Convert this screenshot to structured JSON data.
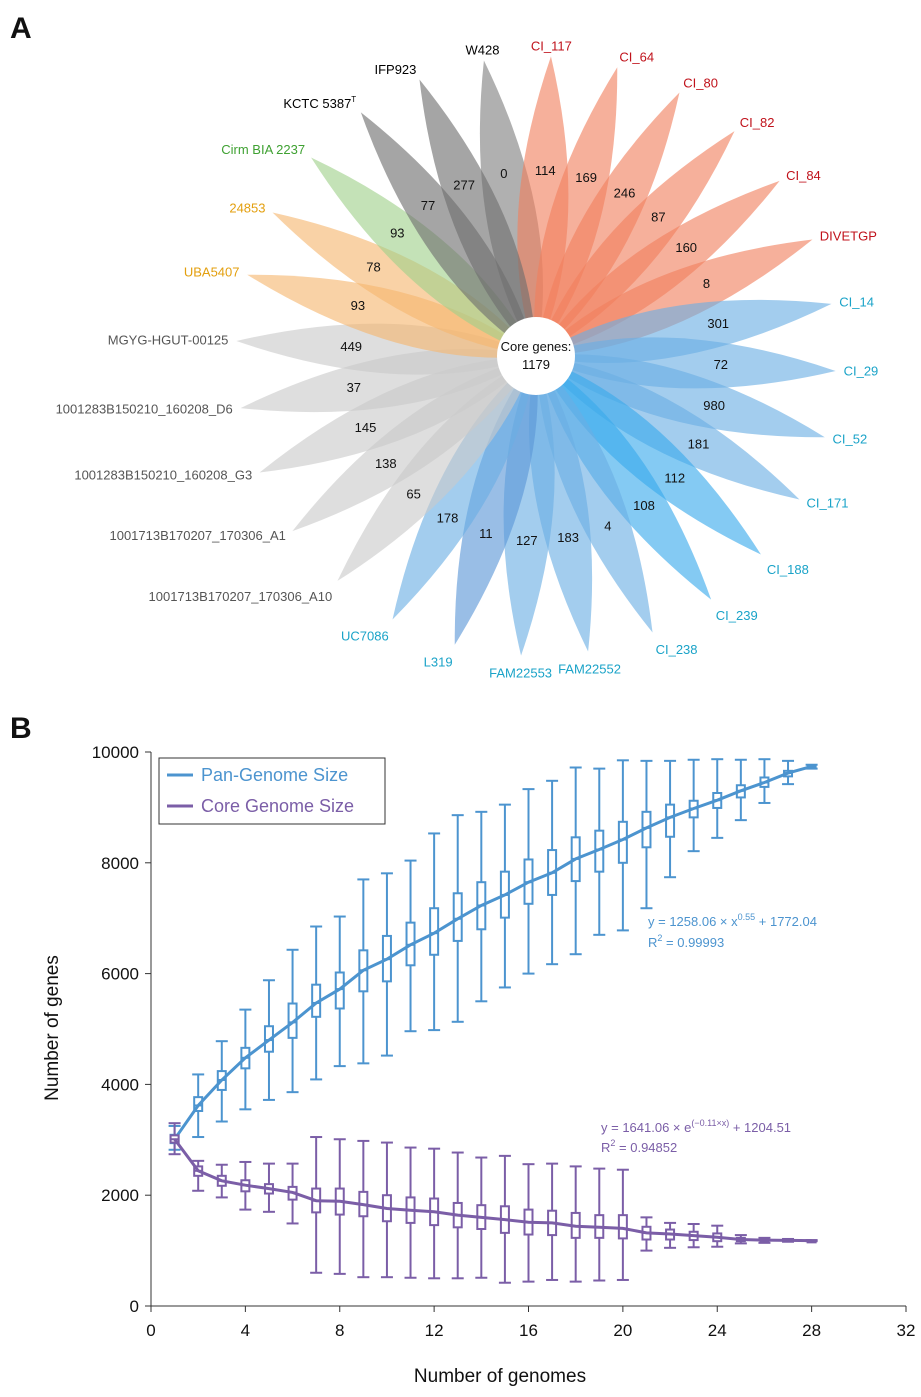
{
  "panel_labels": {
    "a": "A",
    "b": "B"
  },
  "chart_data": [
    {
      "type": "flower",
      "title": "",
      "core_label": "Core genes:",
      "core_value": "1179",
      "petals": [
        {
          "name": "W428",
          "value": "0",
          "color": "#7f7f7f",
          "label_color": "#000000"
        },
        {
          "name": "CI_117",
          "value": "114",
          "color": "#f07f5e",
          "label_color": "#c0121b"
        },
        {
          "name": "CI_64",
          "value": "169",
          "color": "#f07f5e",
          "label_color": "#c0121b"
        },
        {
          "name": "CI_80",
          "value": "246",
          "color": "#f07f5e",
          "label_color": "#c0121b"
        },
        {
          "name": "CI_82",
          "value": "87",
          "color": "#f07f5e",
          "label_color": "#c0121b"
        },
        {
          "name": "CI_84",
          "value": "160",
          "color": "#f07f5e",
          "label_color": "#c0121b"
        },
        {
          "name": "DIVETGP",
          "value": "8",
          "color": "#f07f5e",
          "label_color": "#c0121b"
        },
        {
          "name": "CI_14",
          "value": "301",
          "color": "#6aaee3",
          "label_color": "#1aa3c8"
        },
        {
          "name": "CI_29",
          "value": "72",
          "color": "#6aaee3",
          "label_color": "#1aa3c8"
        },
        {
          "name": "CI_52",
          "value": "980",
          "color": "#6aaee3",
          "label_color": "#1aa3c8"
        },
        {
          "name": "CI_171",
          "value": "181",
          "color": "#6aaee3",
          "label_color": "#1aa3c8"
        },
        {
          "name": "CI_188",
          "value": "112",
          "color": "#39a9ec",
          "label_color": "#1aa3c8"
        },
        {
          "name": "CI_239",
          "value": "108",
          "color": "#39a9ec",
          "label_color": "#1aa3c8"
        },
        {
          "name": "CI_238",
          "value": "4",
          "color": "#6aaee3",
          "label_color": "#1aa3c8"
        },
        {
          "name": "FAM22552",
          "value": "183",
          "color": "#6aaee3",
          "label_color": "#1aa3c8"
        },
        {
          "name": "FAM22553",
          "value": "127",
          "color": "#6aaee3",
          "label_color": "#1aa3c8"
        },
        {
          "name": "L319",
          "value": "11",
          "color": "#5a96d6",
          "label_color": "#1aa3c8"
        },
        {
          "name": "UC7086",
          "value": "178",
          "color": "#6aaee3",
          "label_color": "#1aa3c8"
        },
        {
          "name": "1001713B170207_170306_A10",
          "value": "65",
          "color": "#c9c9c9",
          "label_color": "#555555"
        },
        {
          "name": "1001713B170207_170306_A1",
          "value": "138",
          "color": "#c9c9c9",
          "label_color": "#555555"
        },
        {
          "name": "1001283B150210_160208_G3",
          "value": "145",
          "color": "#c9c9c9",
          "label_color": "#555555"
        },
        {
          "name": "1001283B150210_160208_D6",
          "value": "37",
          "color": "#c9c9c9",
          "label_color": "#555555"
        },
        {
          "name": "MGYG-HGUT-00125",
          "value": "449",
          "color": "#c9c9c9",
          "label_color": "#555555"
        },
        {
          "name": "UBA5407",
          "value": "93",
          "color": "#f5b770",
          "label_color": "#e39f0e"
        },
        {
          "name": "24853",
          "value": "78",
          "color": "#f5b770",
          "label_color": "#e39f0e"
        },
        {
          "name": "Cirm BIA 2237",
          "value": "93",
          "color": "#9fd08a",
          "label_color": "#3fa132"
        },
        {
          "name": "KCTC 5387",
          "name_sup": "T",
          "value": "77",
          "color": "#6e6e6e",
          "label_color": "#000000"
        },
        {
          "name": "IFP923",
          "value": "277",
          "color": "#6e6e6e",
          "label_color": "#000000"
        }
      ]
    },
    {
      "type": "box",
      "xlabel": "Number of genomes",
      "ylabel": "Number of genes",
      "xlim": [
        0,
        32
      ],
      "ylim": [
        0,
        10000
      ],
      "xticks": [
        "0",
        "4",
        "8",
        "12",
        "16",
        "20",
        "24",
        "28",
        "32"
      ],
      "yticks": [
        "0",
        "2000",
        "4000",
        "6000",
        "8000",
        "10000"
      ],
      "legend_position": "top-left",
      "series": [
        {
          "name": "Pan-Genome Size",
          "color": "#4c94cf",
          "fit_equation": "y = 1258.06 × x",
          "fit_exponent": "0.55",
          "fit_tail": " + 1772.04",
          "r2_label": "R",
          "r2_sup": "2",
          "r2_value": " = 0.99993",
          "boxes": [
            {
              "x": 1,
              "min": 2820,
              "q1": 2940,
              "median": 3010,
              "q3": 3090,
              "max": 3250
            },
            {
              "x": 2,
              "min": 3050,
              "q1": 3520,
              "median": 3620,
              "q3": 3770,
              "max": 4180
            },
            {
              "x": 3,
              "min": 3330,
              "q1": 3900,
              "median": 4080,
              "q3": 4240,
              "max": 4780
            },
            {
              "x": 4,
              "min": 3550,
              "q1": 4290,
              "median": 4480,
              "q3": 4660,
              "max": 5350
            },
            {
              "x": 5,
              "min": 3720,
              "q1": 4590,
              "median": 4800,
              "q3": 5050,
              "max": 5880
            },
            {
              "x": 6,
              "min": 3860,
              "q1": 4840,
              "median": 5120,
              "q3": 5460,
              "max": 6430
            },
            {
              "x": 7,
              "min": 4090,
              "q1": 5220,
              "median": 5470,
              "q3": 5800,
              "max": 6850
            },
            {
              "x": 8,
              "min": 4330,
              "q1": 5370,
              "median": 5720,
              "q3": 6020,
              "max": 7030
            },
            {
              "x": 9,
              "min": 4380,
              "q1": 5680,
              "median": 6060,
              "q3": 6420,
              "max": 7700
            },
            {
              "x": 10,
              "min": 4520,
              "q1": 5860,
              "median": 6260,
              "q3": 6680,
              "max": 7810
            },
            {
              "x": 11,
              "min": 4960,
              "q1": 6150,
              "median": 6520,
              "q3": 6920,
              "max": 8040
            },
            {
              "x": 12,
              "min": 4980,
              "q1": 6340,
              "median": 6730,
              "q3": 7180,
              "max": 8530
            },
            {
              "x": 13,
              "min": 5130,
              "q1": 6590,
              "median": 6990,
              "q3": 7450,
              "max": 8860
            },
            {
              "x": 14,
              "min": 5500,
              "q1": 6800,
              "median": 7230,
              "q3": 7650,
              "max": 8920
            },
            {
              "x": 15,
              "min": 5750,
              "q1": 7010,
              "median": 7420,
              "q3": 7840,
              "max": 9050
            },
            {
              "x": 16,
              "min": 6000,
              "q1": 7260,
              "median": 7650,
              "q3": 8060,
              "max": 9330
            },
            {
              "x": 17,
              "min": 6170,
              "q1": 7420,
              "median": 7820,
              "q3": 8230,
              "max": 9480
            },
            {
              "x": 18,
              "min": 6350,
              "q1": 7670,
              "median": 8070,
              "q3": 8460,
              "max": 9720
            },
            {
              "x": 19,
              "min": 6700,
              "q1": 7840,
              "median": 8240,
              "q3": 8580,
              "max": 9700
            },
            {
              "x": 20,
              "min": 6780,
              "q1": 8000,
              "median": 8420,
              "q3": 8740,
              "max": 9850
            },
            {
              "x": 21,
              "min": 7180,
              "q1": 8280,
              "median": 8630,
              "q3": 8920,
              "max": 9840
            },
            {
              "x": 22,
              "min": 7740,
              "q1": 8470,
              "median": 8820,
              "q3": 9050,
              "max": 9840
            },
            {
              "x": 23,
              "min": 8210,
              "q1": 8820,
              "median": 8980,
              "q3": 9120,
              "max": 9860
            },
            {
              "x": 24,
              "min": 8450,
              "q1": 8990,
              "median": 9130,
              "q3": 9260,
              "max": 9870
            },
            {
              "x": 25,
              "min": 8770,
              "q1": 9180,
              "median": 9300,
              "q3": 9400,
              "max": 9860
            },
            {
              "x": 26,
              "min": 9080,
              "q1": 9370,
              "median": 9450,
              "q3": 9540,
              "max": 9870
            },
            {
              "x": 27,
              "min": 9420,
              "q1": 9560,
              "median": 9620,
              "q3": 9660,
              "max": 9840
            },
            {
              "x": 28,
              "min": 9700,
              "q1": 9720,
              "median": 9740,
              "q3": 9760,
              "max": 9770
            }
          ]
        },
        {
          "name": "Core Genome Size",
          "color": "#7b5ea7",
          "fit_equation": "y = 1641.06 × e",
          "fit_exponent": "(−0.11×x)",
          "fit_tail": " + 1204.51",
          "r2_label": "R",
          "r2_sup": "2",
          "r2_value": " = 0.94852",
          "boxes": [
            {
              "x": 1,
              "min": 2740,
              "q1": 2950,
              "median": 3010,
              "q3": 3080,
              "max": 3300
            },
            {
              "x": 2,
              "min": 2080,
              "q1": 2350,
              "median": 2440,
              "q3": 2520,
              "max": 2620
            },
            {
              "x": 3,
              "min": 1960,
              "q1": 2170,
              "median": 2260,
              "q3": 2350,
              "max": 2550
            },
            {
              "x": 4,
              "min": 1740,
              "q1": 2070,
              "median": 2180,
              "q3": 2270,
              "max": 2600
            },
            {
              "x": 5,
              "min": 1700,
              "q1": 2030,
              "median": 2120,
              "q3": 2200,
              "max": 2570
            },
            {
              "x": 6,
              "min": 1490,
              "q1": 1920,
              "median": 2050,
              "q3": 2150,
              "max": 2570
            },
            {
              "x": 7,
              "min": 600,
              "q1": 1690,
              "median": 1900,
              "q3": 2120,
              "max": 3050
            },
            {
              "x": 8,
              "min": 580,
              "q1": 1650,
              "median": 1890,
              "q3": 2120,
              "max": 3010
            },
            {
              "x": 9,
              "min": 520,
              "q1": 1620,
              "median": 1830,
              "q3": 2060,
              "max": 2980
            },
            {
              "x": 10,
              "min": 520,
              "q1": 1530,
              "median": 1760,
              "q3": 2000,
              "max": 2950
            },
            {
              "x": 11,
              "min": 510,
              "q1": 1500,
              "median": 1730,
              "q3": 1960,
              "max": 2860
            },
            {
              "x": 12,
              "min": 500,
              "q1": 1460,
              "median": 1700,
              "q3": 1940,
              "max": 2840
            },
            {
              "x": 13,
              "min": 500,
              "q1": 1420,
              "median": 1640,
              "q3": 1860,
              "max": 2770
            },
            {
              "x": 14,
              "min": 510,
              "q1": 1390,
              "median": 1600,
              "q3": 1820,
              "max": 2680
            },
            {
              "x": 15,
              "min": 420,
              "q1": 1320,
              "median": 1560,
              "q3": 1800,
              "max": 2710
            },
            {
              "x": 16,
              "min": 440,
              "q1": 1290,
              "median": 1510,
              "q3": 1740,
              "max": 2560
            },
            {
              "x": 17,
              "min": 470,
              "q1": 1280,
              "median": 1500,
              "q3": 1720,
              "max": 2570
            },
            {
              "x": 18,
              "min": 440,
              "q1": 1230,
              "median": 1440,
              "q3": 1680,
              "max": 2520
            },
            {
              "x": 19,
              "min": 460,
              "q1": 1230,
              "median": 1420,
              "q3": 1640,
              "max": 2480
            },
            {
              "x": 20,
              "min": 470,
              "q1": 1220,
              "median": 1400,
              "q3": 1640,
              "max": 2460
            },
            {
              "x": 21,
              "min": 1000,
              "q1": 1200,
              "median": 1320,
              "q3": 1430,
              "max": 1600
            },
            {
              "x": 22,
              "min": 1050,
              "q1": 1200,
              "median": 1300,
              "q3": 1380,
              "max": 1500
            },
            {
              "x": 23,
              "min": 1060,
              "q1": 1190,
              "median": 1270,
              "q3": 1340,
              "max": 1480
            },
            {
              "x": 24,
              "min": 1070,
              "q1": 1170,
              "median": 1240,
              "q3": 1310,
              "max": 1450
            },
            {
              "x": 25,
              "min": 1130,
              "q1": 1170,
              "median": 1200,
              "q3": 1230,
              "max": 1280
            },
            {
              "x": 26,
              "min": 1140,
              "q1": 1160,
              "median": 1190,
              "q3": 1210,
              "max": 1230
            },
            {
              "x": 27,
              "min": 1160,
              "q1": 1170,
              "median": 1185,
              "q3": 1200,
              "max": 1210
            },
            {
              "x": 28,
              "min": 1170,
              "q1": 1175,
              "median": 1180,
              "q3": 1185,
              "max": 1190
            }
          ]
        }
      ]
    }
  ]
}
